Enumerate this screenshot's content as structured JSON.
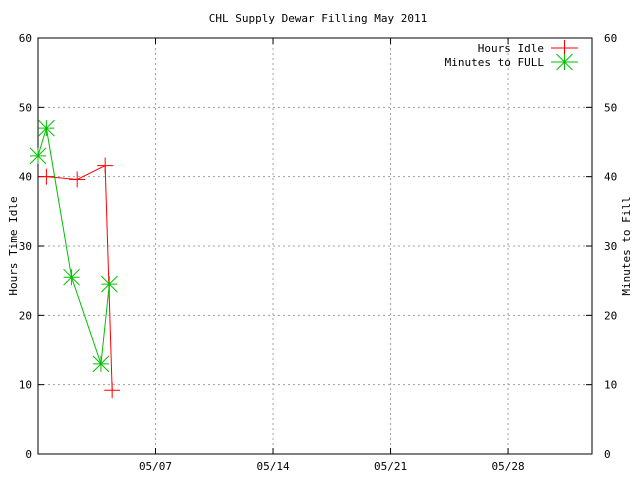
{
  "chart_data": {
    "type": "line",
    "title": "CHL Supply Dewar Filling May 2011",
    "ylabel": "Hours Time Idle",
    "y2label": "Minutes to Fill",
    "xlabel": "",
    "xlim": [
      "2011-04-30",
      "2011-06-02"
    ],
    "ylim": [
      0,
      60
    ],
    "y2lim": [
      0,
      60
    ],
    "xticks": [
      "05/07",
      "05/14",
      "05/21",
      "05/28"
    ],
    "xtick_dates": [
      "2011-05-07",
      "2011-05-14",
      "2011-05-21",
      "2011-05-28"
    ],
    "yticks": [
      0,
      10,
      20,
      30,
      40,
      50,
      60
    ],
    "y2ticks": [
      0,
      10,
      20,
      30,
      40,
      50,
      60
    ],
    "grid": true,
    "legend_position": "top-right",
    "series": [
      {
        "name": "Hours Idle",
        "color": "#ff0000",
        "marker": "plus",
        "axis": "y",
        "points": [
          {
            "x": "2011-04-30 12:00",
            "y": 40.0
          },
          {
            "x": "2011-05-02 08:00",
            "y": 39.6
          },
          {
            "x": "2011-05-04 00:00",
            "y": 41.6
          },
          {
            "x": "2011-05-04 10:00",
            "y": 9.2
          }
        ]
      },
      {
        "name": "Minutes to FULL",
        "color": "#00c000",
        "marker": "star",
        "axis": "y2",
        "points": [
          {
            "x": "2011-04-30 00:00",
            "y": 43.0
          },
          {
            "x": "2011-04-30 12:00",
            "y": 47.0
          },
          {
            "x": "2011-05-02 00:00",
            "y": 25.5
          },
          {
            "x": "2011-05-03 18:00",
            "y": 13.0
          },
          {
            "x": "2011-05-04 06:00",
            "y": 24.5
          }
        ]
      }
    ]
  }
}
